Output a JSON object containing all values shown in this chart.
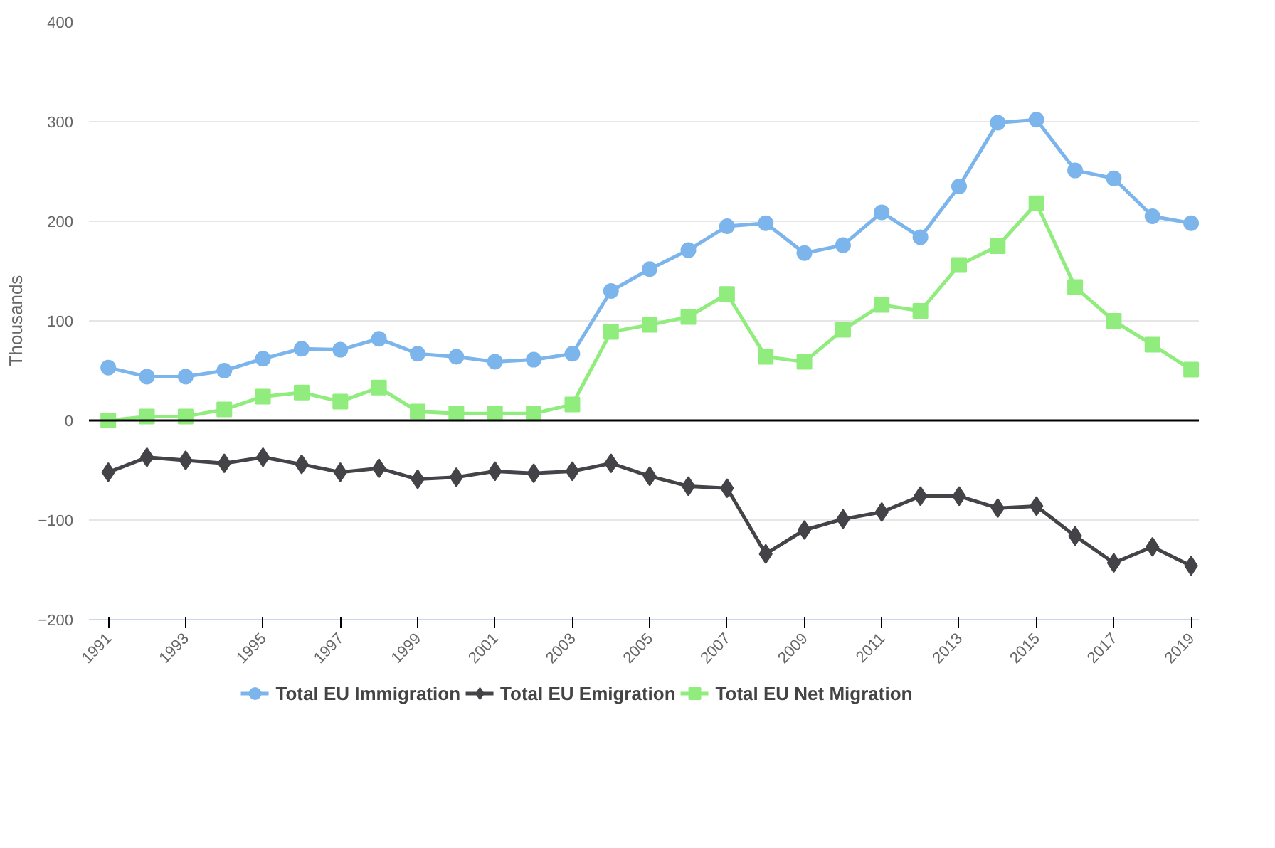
{
  "chart_data": {
    "type": "line",
    "ylabel": "Thousands",
    "x": [
      1991,
      1992,
      1993,
      1994,
      1995,
      1996,
      1997,
      1998,
      1999,
      2000,
      2001,
      2002,
      2003,
      2004,
      2005,
      2006,
      2007,
      2008,
      2009,
      2010,
      2011,
      2012,
      2013,
      2014,
      2015,
      2016,
      2017,
      2018,
      2019
    ],
    "xlim": [
      1990.5,
      2019.2
    ],
    "xticks": [
      1991,
      1993,
      1995,
      1997,
      1999,
      2001,
      2003,
      2005,
      2007,
      2009,
      2011,
      2013,
      2015,
      2017,
      2019
    ],
    "ylim": [
      -200,
      400
    ],
    "yticks": [
      -200,
      -100,
      0,
      100,
      200,
      300,
      400
    ],
    "grid": "y",
    "legend": "bottom",
    "ref_lines": [
      {
        "axis": "y",
        "value": 0,
        "color": "#000000"
      }
    ],
    "series": [
      {
        "name": "Total EU Immigration",
        "color": "#7cb5ec",
        "marker": "circle",
        "values": [
          53,
          44,
          44,
          50,
          62,
          72,
          71,
          82,
          67,
          64,
          59,
          61,
          67,
          130,
          152,
          171,
          195,
          198,
          168,
          176,
          209,
          184,
          235,
          299,
          302,
          251,
          243,
          205,
          198
        ]
      },
      {
        "name": "Total EU Emigration",
        "color": "#434348",
        "marker": "diamond",
        "values": [
          -52,
          -37,
          -40,
          -43,
          -37,
          -44,
          -52,
          -48,
          -59,
          -57,
          -51,
          -53,
          -51,
          -43,
          -56,
          -66,
          -68,
          -134,
          -110,
          -99,
          -92,
          -76,
          -76,
          -88,
          -86,
          -116,
          -143,
          -127,
          -146
        ]
      },
      {
        "name": "Total EU Net Migration",
        "color": "#90ed7d",
        "marker": "square",
        "values": [
          0,
          4,
          4,
          11,
          24,
          28,
          19,
          33,
          9,
          7,
          7,
          7,
          16,
          89,
          96,
          104,
          127,
          64,
          59,
          91,
          116,
          110,
          156,
          175,
          218,
          134,
          100,
          76,
          51
        ]
      }
    ]
  }
}
